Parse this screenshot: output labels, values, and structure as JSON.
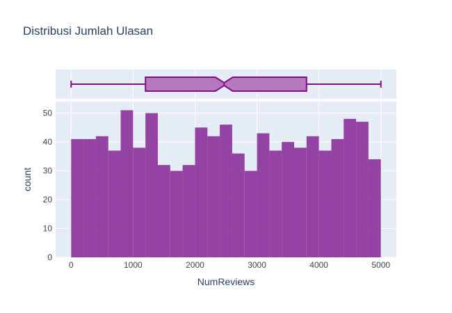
{
  "chart_data": {
    "type": "bar",
    "title": "Distribusi Jumlah Ulasan",
    "xlabel": "NumReviews",
    "ylabel": "count",
    "bin_width": 200,
    "bin_start": 0,
    "values": [
      41,
      41,
      42,
      37,
      51,
      38,
      50,
      32,
      30,
      32,
      45,
      42,
      46,
      36,
      30,
      43,
      37,
      40,
      38,
      42,
      37,
      41,
      48,
      47,
      34
    ],
    "xlim": [
      -250,
      5250
    ],
    "ylim": [
      0,
      54
    ],
    "xticks": [
      0,
      1000,
      2000,
      3000,
      4000,
      5000
    ],
    "yticks": [
      0,
      10,
      20,
      30,
      40,
      50
    ],
    "grid": true,
    "box": {
      "min": 0,
      "q1": 1200,
      "median": 2470,
      "q3": 3800,
      "max": 5000,
      "notch_low": 2330,
      "notch_high": 2610
    },
    "colors": {
      "bar": "#8e3a9c",
      "box_fill": "#b06ab8",
      "box_line": "#7e0f86",
      "plot_bg": "#e5ecf6",
      "grid": "#ffffff",
      "text": "#2a3f5f",
      "tick_text": "#444444"
    }
  }
}
